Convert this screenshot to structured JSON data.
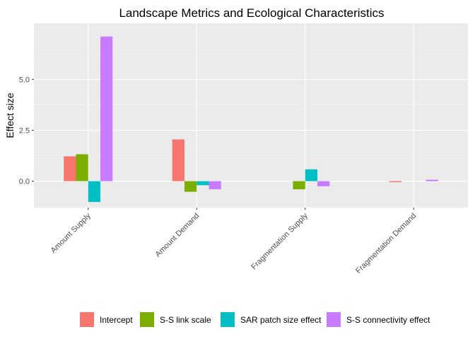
{
  "chart_data": {
    "type": "bar",
    "title": "Landscape Metrics and Ecological Characteristics",
    "xlabel": "",
    "ylabel": "Effect size",
    "categories": [
      "Amount Supply",
      "Amount Demand",
      "Fragmentation Supply",
      "Fragmentation Demand"
    ],
    "series": [
      {
        "name": "Intercept",
        "color": "#F8766D",
        "values": [
          1.22,
          2.05,
          0.0,
          -0.05
        ]
      },
      {
        "name": "S-S link scale",
        "color": "#7CAE00",
        "values": [
          1.32,
          -0.52,
          -0.4,
          0.0
        ]
      },
      {
        "name": "SAR patch size effect",
        "color": "#00BFC4",
        "values": [
          -1.02,
          -0.2,
          0.58,
          0.0
        ]
      },
      {
        "name": "S-S connectivity effect",
        "color": "#C77CFF",
        "values": [
          7.1,
          -0.4,
          -0.25,
          0.07
        ]
      }
    ],
    "ylim": [
      -1.3,
      7.75
    ],
    "yticks": [
      0.0,
      2.5,
      5.0
    ],
    "ytick_labels": [
      "0.0",
      "2.5",
      "5.0"
    ],
    "grid": true,
    "legend_position": "bottom",
    "colors": {
      "panel_bg": "#EBEBEB",
      "grid_major": "#FFFFFF",
      "grid_minor": "#F5F5F5"
    }
  }
}
